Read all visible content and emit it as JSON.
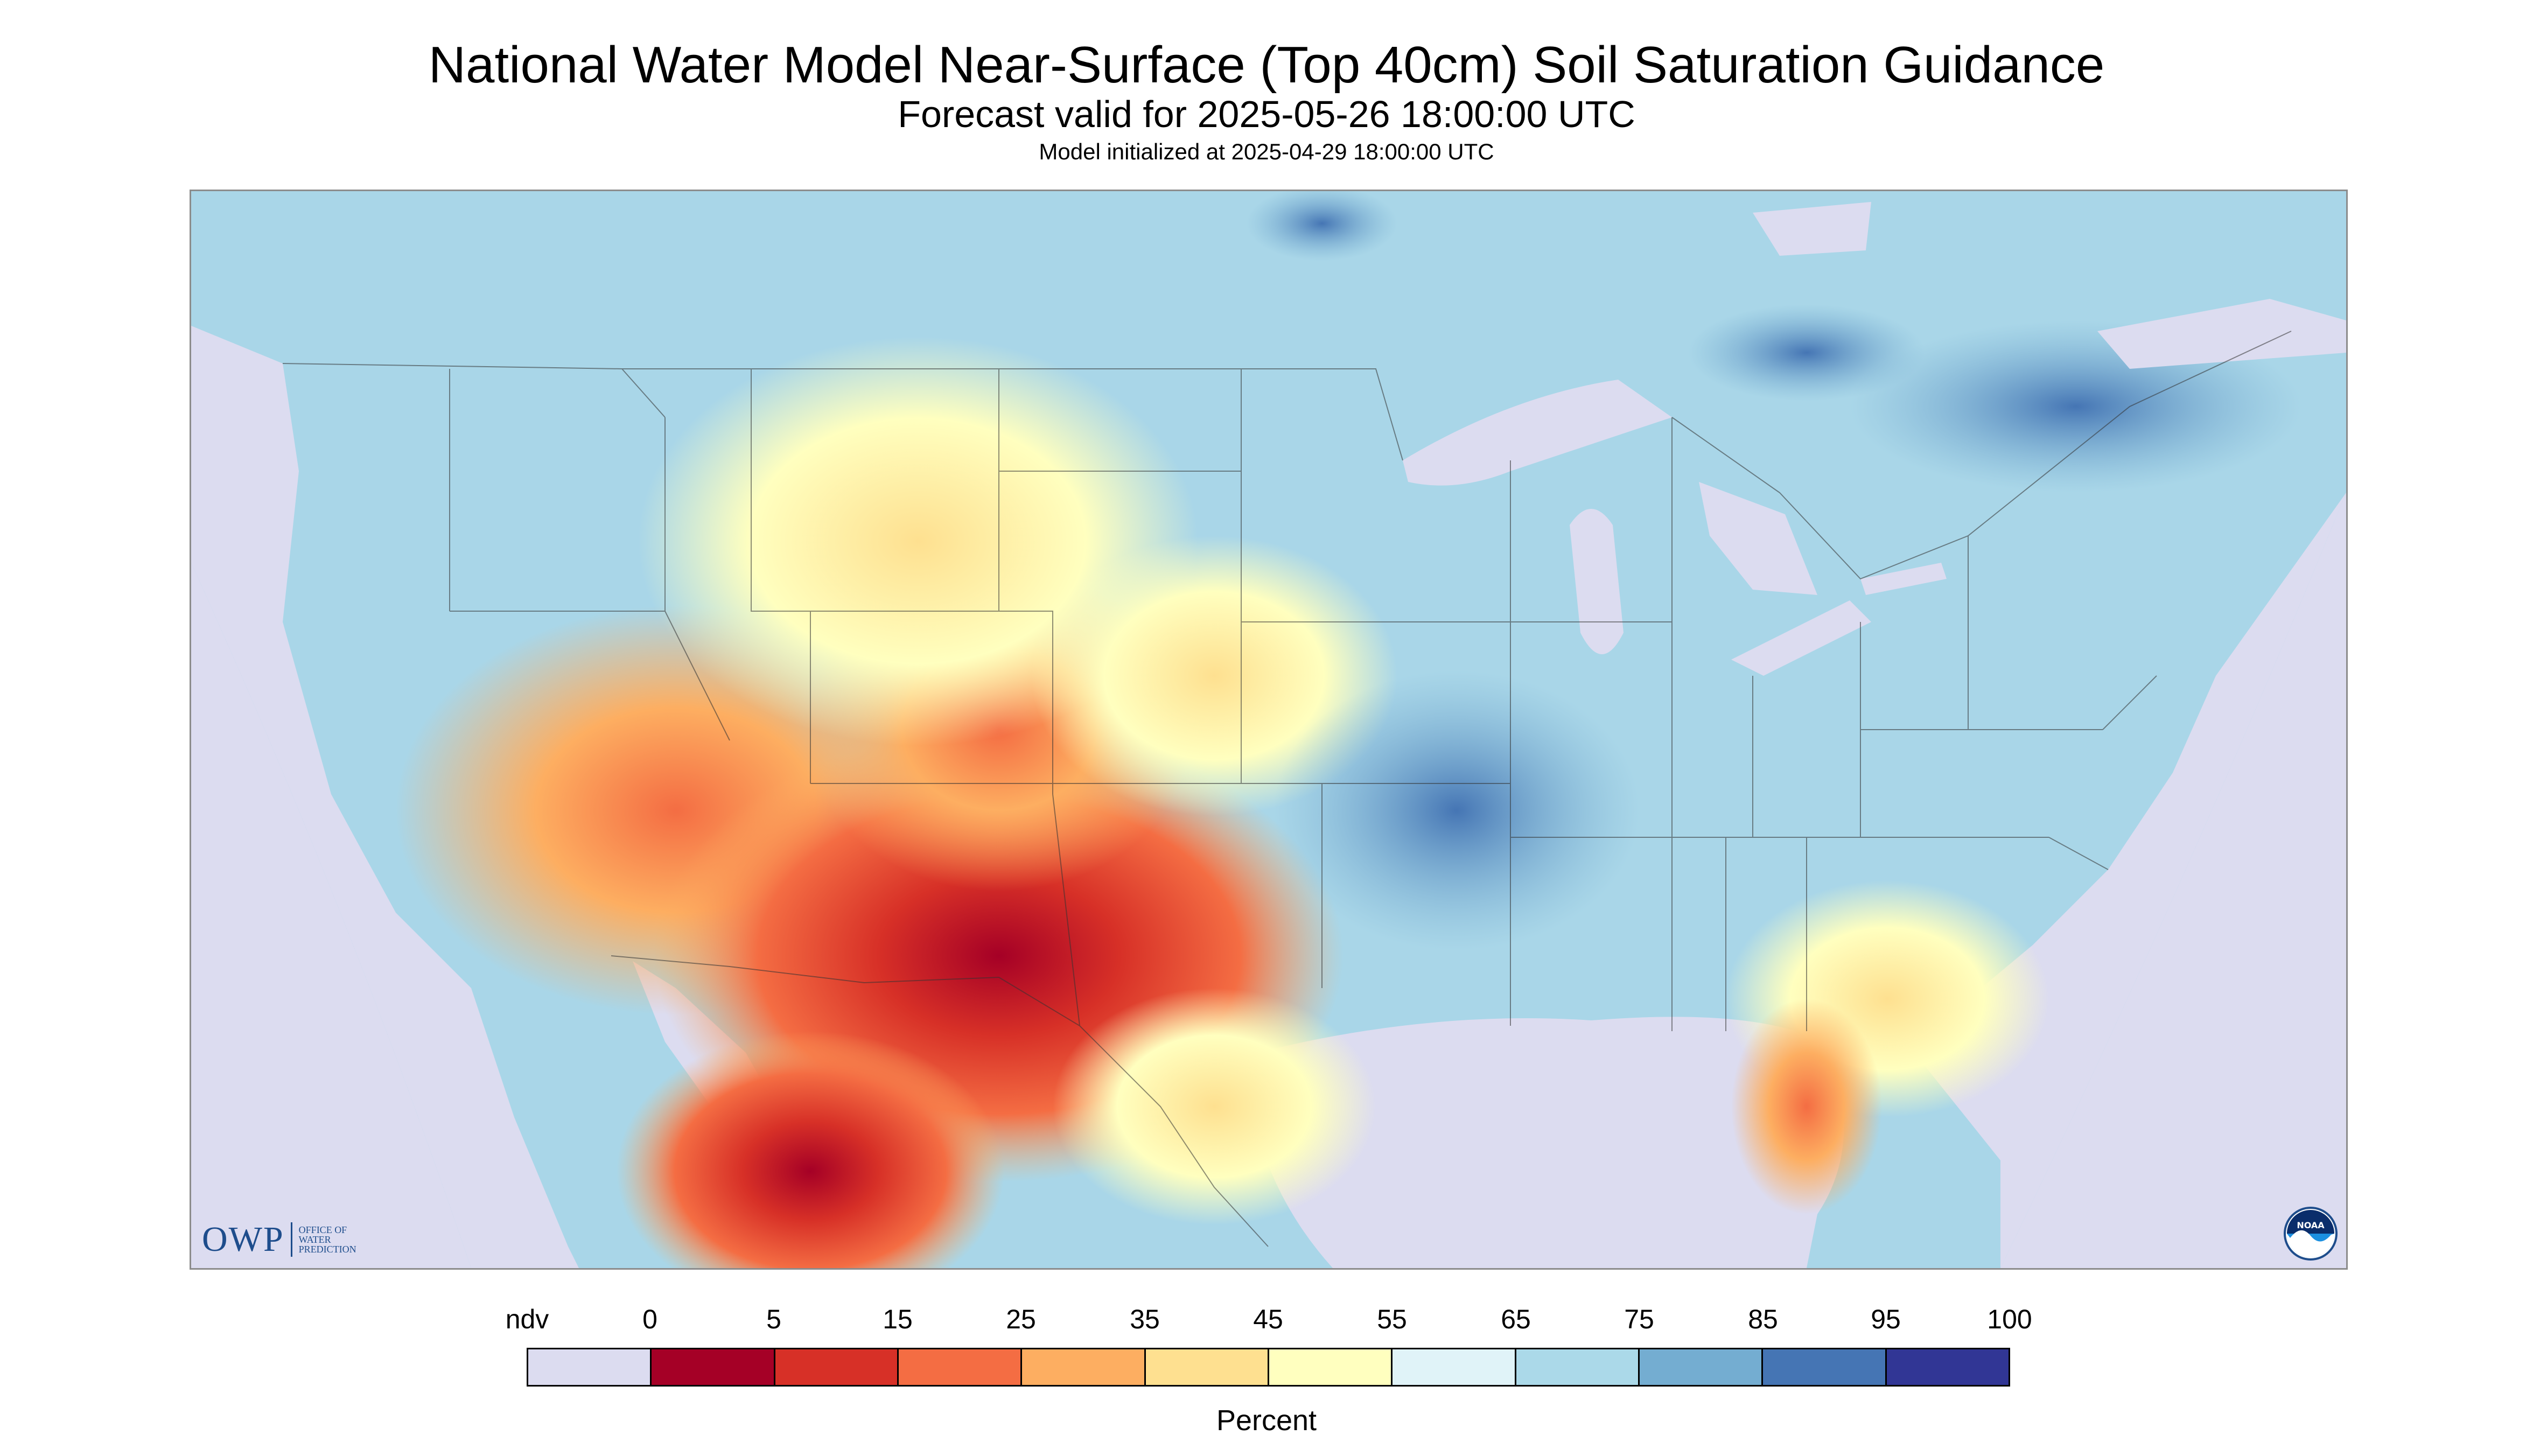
{
  "header": {
    "title": "National Water Model Near-Surface (Top 40cm) Soil Saturation Guidance",
    "subtitle": "Forecast valid for 2025-05-26 18:00:00 UTC",
    "init_line": "Model initialized at 2025-04-29 18:00:00 UTC"
  },
  "map": {
    "owp_logo": {
      "abbr": "OWP",
      "line1": "OFFICE OF",
      "line2": "WATER",
      "line3": "PREDICTION"
    },
    "noaa_logo": {
      "text": "NOAA",
      "icon": "noaa-logo-icon"
    },
    "background_colors": {
      "ndv": "#dcdcf0",
      "ocean": "#dcdcf0",
      "land_base": "#a9d6e8"
    }
  },
  "legend": {
    "labels": [
      "ndv",
      "0",
      "5",
      "15",
      "25",
      "35",
      "45",
      "55",
      "65",
      "75",
      "85",
      "95",
      "100"
    ],
    "unit": "Percent",
    "bins": [
      {
        "range": "ndv",
        "color": "#dcdcf0"
      },
      {
        "range": "0-5",
        "color": "#a50026"
      },
      {
        "range": "5-15",
        "color": "#d73027"
      },
      {
        "range": "15-25",
        "color": "#f46d43"
      },
      {
        "range": "25-35",
        "color": "#fdae61"
      },
      {
        "range": "35-45",
        "color": "#fee090"
      },
      {
        "range": "45-55",
        "color": "#ffffbf"
      },
      {
        "range": "55-65",
        "color": "#e0f3f8"
      },
      {
        "range": "65-75",
        "color": "#abd9e9"
      },
      {
        "range": "75-85",
        "color": "#74add1"
      },
      {
        "range": "85-95",
        "color": "#4575b4"
      },
      {
        "range": "95-100",
        "color": "#313695"
      }
    ]
  }
}
